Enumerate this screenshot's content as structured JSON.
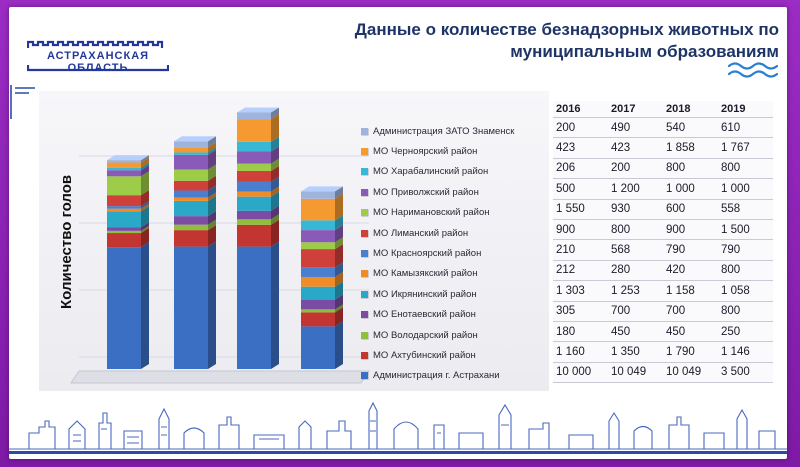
{
  "logo": {
    "text": "АСТРАХАНСКАЯ ОБЛАСТЬ"
  },
  "title": {
    "line1": "Данные о количестве безнадзорных животных по",
    "line2": "муниципальным образованиям"
  },
  "colors": {
    "frame": "#8a1fb0",
    "title": "#1f3466",
    "accent": "#2d4aa8"
  },
  "icons": [
    "kremlin-wall-logo-icon",
    "wave-icon",
    "city-skyline-icon"
  ],
  "chart_data": {
    "type": "bar",
    "stacked": true,
    "style": "3d",
    "ylabel": "Количество   голов",
    "categories": [
      "2016",
      "2017",
      "2018",
      "2019"
    ],
    "series": [
      {
        "name": "Администрация г. Астрахани",
        "color": "#3a6fc4",
        "values": [
          10000,
          10049,
          10049,
          3500
        ]
      },
      {
        "name": "МО Ахтубинский район",
        "color": "#c23530",
        "values": [
          1160,
          1350,
          1790,
          1146
        ]
      },
      {
        "name": "МО Володарский район",
        "color": "#8fbf3c",
        "values": [
          180,
          450,
          450,
          250
        ]
      },
      {
        "name": "МО Енотаевский район",
        "color": "#7a4ca3",
        "values": [
          305,
          700,
          700,
          800
        ]
      },
      {
        "name": "МО Икрянинский район",
        "color": "#2aa8c8",
        "values": [
          1303,
          1253,
          1158,
          1058
        ]
      },
      {
        "name": "МО Камызякский район",
        "color": "#f08c28",
        "values": [
          212,
          280,
          420,
          800
        ]
      },
      {
        "name": "МО Красноярский район",
        "color": "#4a7fd0",
        "values": [
          210,
          568,
          790,
          790
        ]
      },
      {
        "name": "МО Лиманский район",
        "color": "#d0403a",
        "values": [
          900,
          800,
          900,
          1500
        ]
      },
      {
        "name": "МО Наримановский район",
        "color": "#9ccc48",
        "values": [
          1550,
          930,
          600,
          558
        ]
      },
      {
        "name": "МО Приволжский район",
        "color": "#8a5ab8",
        "values": [
          500,
          1200,
          1000,
          1000
        ]
      },
      {
        "name": "МО Харабалинский район",
        "color": "#38b8d6",
        "values": [
          206,
          200,
          800,
          800
        ]
      },
      {
        "name": "МО Черноярский район",
        "color": "#f59a30",
        "values": [
          423,
          423,
          1858,
          1767
        ]
      },
      {
        "name": "Администрация ЗАТО Знаменск",
        "color": "#9fb4dc",
        "values": [
          200,
          490,
          540,
          610
        ]
      }
    ],
    "ylim": [
      0,
      22000
    ],
    "grid": true,
    "legend": "right"
  },
  "table": {
    "years": [
      "2016",
      "2017",
      "2018",
      "2019"
    ],
    "rows": [
      [
        "200",
        "490",
        "540",
        "610"
      ],
      [
        "423",
        "423",
        "1 858",
        "1 767"
      ],
      [
        "206",
        "200",
        "800",
        "800"
      ],
      [
        "500",
        "1 200",
        "1 000",
        "1 000"
      ],
      [
        "1 550",
        "930",
        "600",
        "558"
      ],
      [
        "900",
        "800",
        "900",
        "1 500"
      ],
      [
        "210",
        "568",
        "790",
        "790"
      ],
      [
        "212",
        "280",
        "420",
        "800"
      ],
      [
        "1 303",
        "1 253",
        "1 158",
        "1 058"
      ],
      [
        "305",
        "700",
        "700",
        "800"
      ],
      [
        "180",
        "450",
        "450",
        "250"
      ],
      [
        "1 160",
        "1 350",
        "1 790",
        "1 146"
      ],
      [
        "10 000",
        "10 049",
        "10 049",
        "3 500"
      ]
    ]
  }
}
